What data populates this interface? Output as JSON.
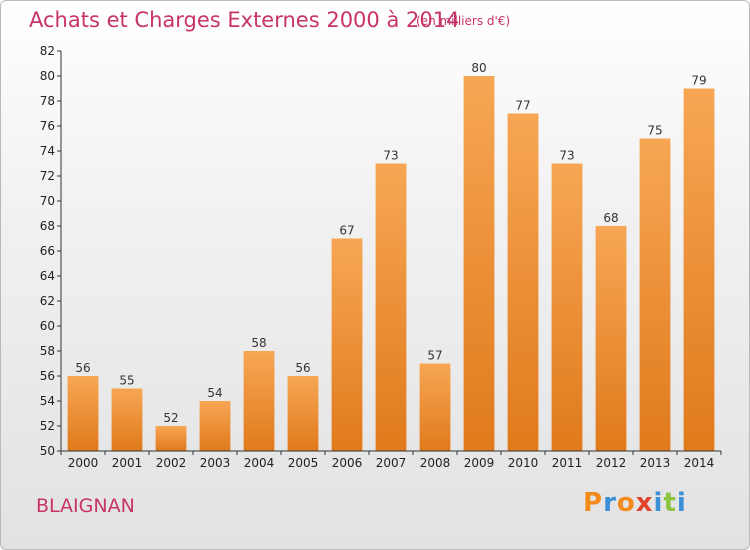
{
  "chart_data": {
    "type": "bar",
    "title": "Achats et Charges Externes 2000 à 2014",
    "subtitle": "(en milliers d'€)",
    "categories": [
      "2000",
      "2001",
      "2002",
      "2003",
      "2004",
      "2005",
      "2006",
      "2007",
      "2008",
      "2009",
      "2010",
      "2011",
      "2012",
      "2013",
      "2014"
    ],
    "values": [
      56,
      55,
      52,
      54,
      58,
      56,
      67,
      73,
      57,
      80,
      77,
      73,
      68,
      75,
      79
    ],
    "ylim": [
      50,
      82
    ],
    "yticks": [
      50,
      52,
      54,
      56,
      58,
      60,
      62,
      64,
      66,
      68,
      70,
      72,
      74,
      76,
      78,
      80,
      82
    ],
    "grid": false,
    "bar_color_light": "#f7a654",
    "bar_color_dark": "#e07a1c"
  },
  "footer": {
    "place": "BLAIGNAN",
    "brand_letters": [
      "P",
      "r",
      "o",
      "x",
      "i",
      "t",
      "i"
    ],
    "brand_colors": [
      "#f28a1c",
      "#3a8fd6",
      "#f28a1c",
      "#e0442a",
      "#3a8fd6",
      "#8cc43f",
      "#3a8fd6"
    ]
  },
  "colors": {
    "accent": "#c8336a"
  }
}
